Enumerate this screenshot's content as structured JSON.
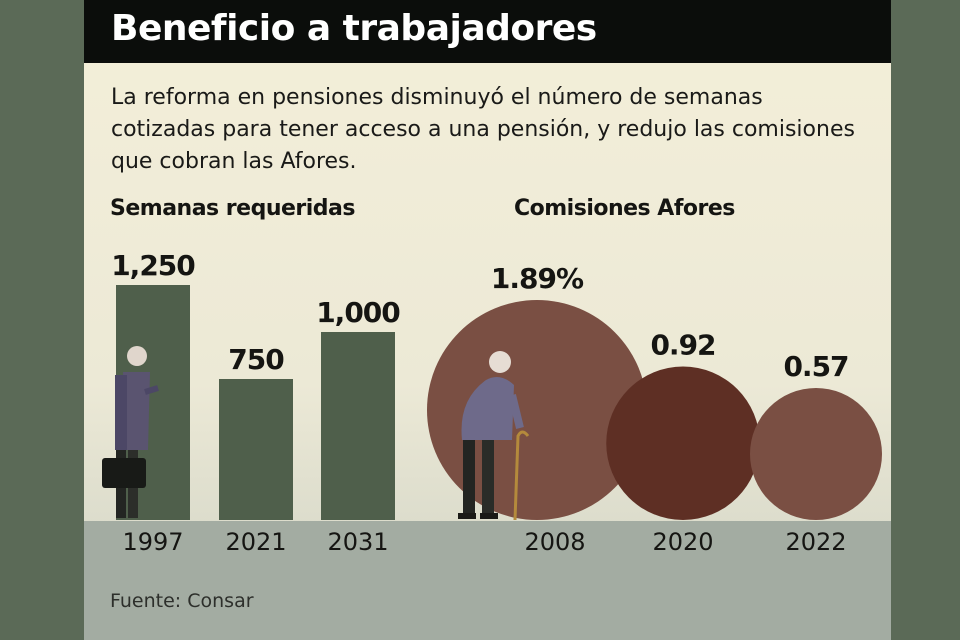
{
  "title": "Beneficio a trabajadores",
  "description": "La reforma en pensiones disminuyó el número de semanas cotizadas para tener acceso a una pensión, y redujo las comisiones que cobran las Afores.",
  "source": "Fuente: Consar",
  "chart_data": [
    {
      "type": "bar",
      "title": "Semanas requeridas",
      "categories": [
        "1997",
        "2021",
        "2031"
      ],
      "values": [
        1250,
        750,
        1000
      ],
      "labels": [
        "1,250",
        "750",
        "1,000"
      ],
      "color": "#4f5f4b"
    },
    {
      "type": "bubble",
      "title": "Comisiones Afores",
      "categories": [
        "2008",
        "2020",
        "2022"
      ],
      "values": [
        1.89,
        0.92,
        0.57
      ],
      "labels": [
        "1.89%",
        "0.92",
        "0.57"
      ],
      "colors": [
        "#7a4f43",
        "#5e2f24",
        "#7a4f43"
      ]
    }
  ]
}
